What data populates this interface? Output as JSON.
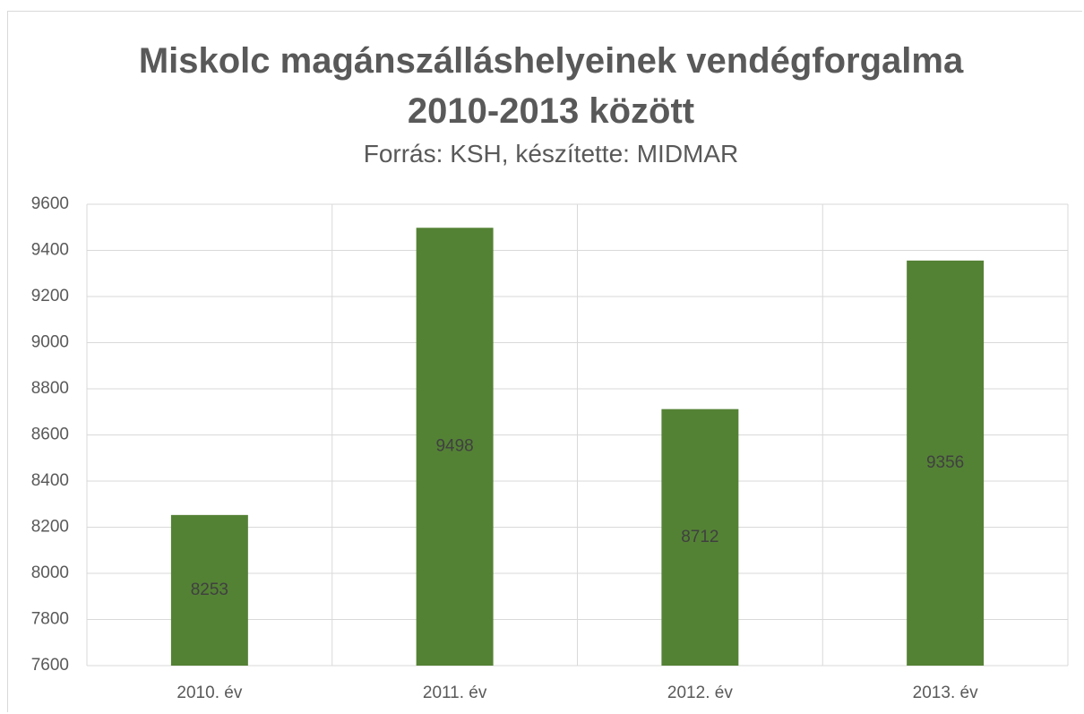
{
  "chart_data": {
    "type": "bar",
    "title": "Miskolc magánszálláshelyeinek vendégforgalma 2010-2013 között",
    "subtitle": "Forrás: KSH, készítette: MIDMAR",
    "categories": [
      "2010. év",
      "2011. év",
      "2012. év",
      "2013. év"
    ],
    "values": [
      8253,
      9498,
      8712,
      9356
    ],
    "color": "#548235",
    "ylim": [
      7600,
      9600
    ],
    "yticks": [
      7600,
      7800,
      8000,
      8200,
      8400,
      8600,
      8800,
      9000,
      9200,
      9400,
      9600
    ],
    "grid": true
  }
}
